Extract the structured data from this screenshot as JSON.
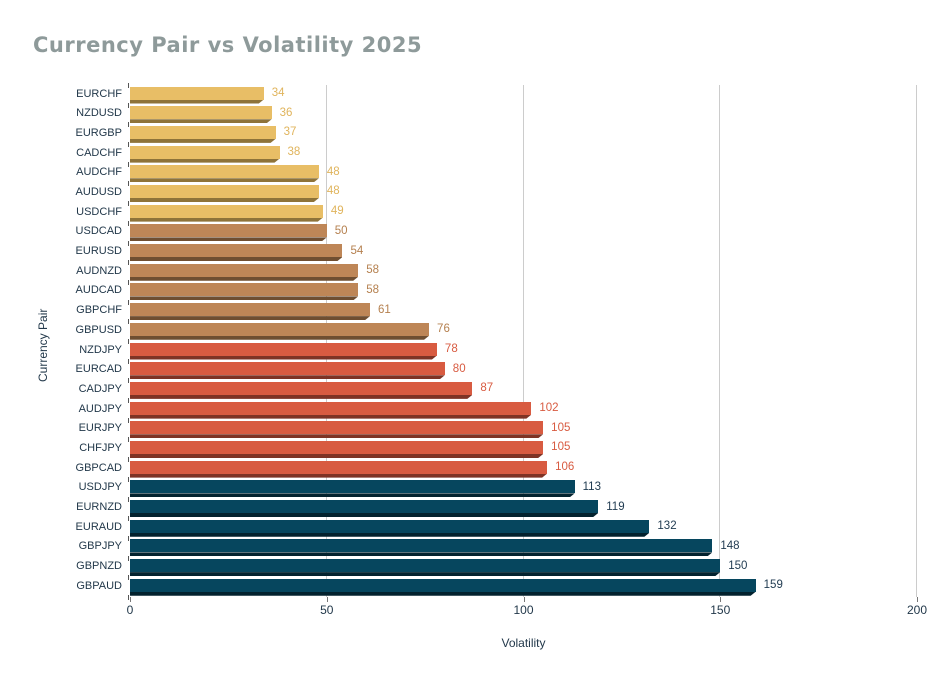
{
  "chart_data": {
    "type": "bar",
    "orientation": "horizontal",
    "title": "Currency Pair vs Volatility 2025",
    "xlabel": "Volatility",
    "ylabel": "Currency Pair",
    "xlim": [
      0,
      200
    ],
    "xticks": [
      0,
      50,
      100,
      150,
      200
    ],
    "grid": "vertical-gridlines-at-xticks",
    "legend": "none",
    "value_labels": "right-of-bar-end",
    "bars": [
      {
        "pair": "EURCHF",
        "value": 34,
        "group": "gold"
      },
      {
        "pair": "NZDUSD",
        "value": 36,
        "group": "gold"
      },
      {
        "pair": "EURGBP",
        "value": 37,
        "group": "gold"
      },
      {
        "pair": "CADCHF",
        "value": 38,
        "group": "gold"
      },
      {
        "pair": "AUDCHF",
        "value": 48,
        "group": "gold"
      },
      {
        "pair": "AUDUSD",
        "value": 48,
        "group": "gold"
      },
      {
        "pair": "USDCHF",
        "value": 49,
        "group": "gold"
      },
      {
        "pair": "USDCAD",
        "value": 50,
        "group": "tan"
      },
      {
        "pair": "EURUSD",
        "value": 54,
        "group": "tan"
      },
      {
        "pair": "AUDNZD",
        "value": 58,
        "group": "tan"
      },
      {
        "pair": "AUDCAD",
        "value": 58,
        "group": "tan"
      },
      {
        "pair": "GBPCHF",
        "value": 61,
        "group": "tan"
      },
      {
        "pair": "GBPUSD",
        "value": 76,
        "group": "tan"
      },
      {
        "pair": "NZDJPY",
        "value": 78,
        "group": "red"
      },
      {
        "pair": "EURCAD",
        "value": 80,
        "group": "red"
      },
      {
        "pair": "CADJPY",
        "value": 87,
        "group": "red"
      },
      {
        "pair": "AUDJPY",
        "value": 102,
        "group": "red"
      },
      {
        "pair": "EURJPY",
        "value": 105,
        "group": "red"
      },
      {
        "pair": "CHFJPY",
        "value": 105,
        "group": "red"
      },
      {
        "pair": "GBPCAD",
        "value": 106,
        "group": "red"
      },
      {
        "pair": "USDJPY",
        "value": 113,
        "group": "teal"
      },
      {
        "pair": "EURNZD",
        "value": 119,
        "group": "teal"
      },
      {
        "pair": "EURAUD",
        "value": 132,
        "group": "teal"
      },
      {
        "pair": "GBPJPY",
        "value": 148,
        "group": "teal"
      },
      {
        "pair": "GBPNZD",
        "value": 150,
        "group": "teal"
      },
      {
        "pair": "GBPAUD",
        "value": 159,
        "group": "teal"
      }
    ],
    "palette": {
      "gold": {
        "fill": "#e8be66",
        "shade": "#8e7339",
        "label": "#e0b45c"
      },
      "tan": {
        "fill": "#be8657",
        "shade": "#6f4e31",
        "label": "#b5804f"
      },
      "red": {
        "fill": "#d85b41",
        "shade": "#7e3325",
        "label": "#d85b41"
      },
      "teal": {
        "fill": "#06465e",
        "shade": "#03222e",
        "label": "#1f3a50"
      }
    },
    "text_colors": {
      "title": "#8e9a9a",
      "axis_text": "#22384a",
      "gridline": "#cccccc"
    }
  }
}
